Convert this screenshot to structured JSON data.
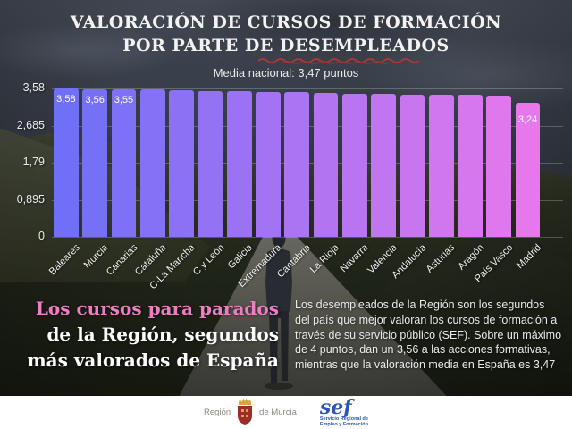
{
  "title": {
    "line1": "VALORACIÓN DE CURSOS DE FORMACIÓN",
    "line2": "POR PARTE DE DESEMPLEADOS"
  },
  "subtitle": "Media nacional: 3,47 puntos",
  "chart_data": {
    "type": "bar",
    "title": "VALORACIÓN DE CURSOS DE FORMACIÓN POR PARTE DE DESEMPLEADOS",
    "subtitle": "Media nacional: 3,47 puntos",
    "national_average": 3.47,
    "ylim": [
      0,
      3.58
    ],
    "yticks": [
      {
        "label": "3,58",
        "value": 3.58
      },
      {
        "label": "2,685",
        "value": 2.685
      },
      {
        "label": "1,79",
        "value": 1.79
      },
      {
        "label": "0,895",
        "value": 0.895
      },
      {
        "label": "0",
        "value": 0
      }
    ],
    "categories": [
      "Baleares",
      "Murcia",
      "Canarias",
      "Cataluña",
      "C-La Mancha",
      "C y León",
      "Galicia",
      "Extremadura",
      "Cantabria",
      "La Rioja",
      "Navarra",
      "Valencia",
      "Andalucía",
      "Asturias",
      "Aragón",
      "País Vasco",
      "Madrid"
    ],
    "values": [
      3.58,
      3.56,
      3.55,
      3.55,
      3.54,
      3.52,
      3.51,
      3.5,
      3.49,
      3.47,
      3.46,
      3.45,
      3.44,
      3.43,
      3.42,
      3.41,
      3.24
    ],
    "bar_labels": [
      "3,58",
      "3,56",
      "3,55",
      "",
      "",
      "",
      "",
      "",
      "",
      "",
      "",
      "",
      "",
      "",
      "",
      "",
      "3,24"
    ],
    "bar_color_start": "#6f6ff8",
    "bar_color_end": "#e678ec",
    "grid": true,
    "legend": "none"
  },
  "headline": {
    "line1": "Los cursos para parados",
    "line2": "de la Región, segundos",
    "line3": "más valorados de España",
    "accent_color": "#ef7dc5"
  },
  "paragraph": "Los desempleados de la Región son los segundos del país que mejor valoran los cursos de formación a través de su servicio público (SEF).  Sobre un máximo de 4 puntos, dan un 3,56 a las acciones formativas, mientras que la valoración media en España es 3,47",
  "footer": {
    "murcia_logo": {
      "region": "Región",
      "de_murcia": "de Murcia"
    },
    "sef_logo": {
      "name": "sef",
      "sub1": "Servicio Regional de",
      "sub2": "Empleo y Formación",
      "color": "#2b55b8"
    }
  }
}
